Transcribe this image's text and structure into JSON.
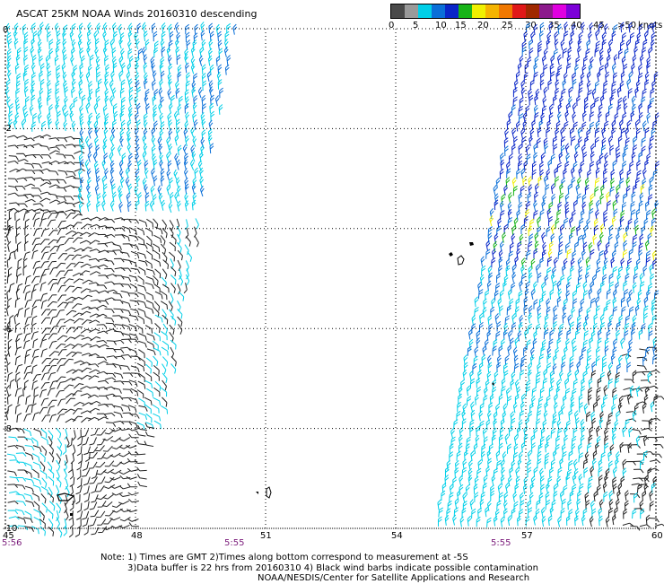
{
  "title": "ASCAT 25KM NOAA Winds 20160310 descending",
  "legend": {
    "units": "knots",
    "colors": [
      "#4a4a4a",
      "#9a9a9a",
      "#00cfe8",
      "#0a6fd8",
      "#0a26c8",
      "#18b418",
      "#f0f000",
      "#f5b400",
      "#f07800",
      "#e01818",
      "#a02800",
      "#8c1a8c",
      "#e000e0",
      "#7c00d8"
    ],
    "labels": [
      "0",
      "5",
      "10",
      "15",
      "20",
      "25",
      "30",
      "35",
      "40",
      "45",
      ">50"
    ]
  },
  "map": {
    "lat_ticks": [
      "0",
      "-2",
      "-4",
      "-6",
      "-8",
      "-10"
    ],
    "lon_ticks": [
      "45",
      "48",
      "51",
      "54",
      "57",
      "60"
    ],
    "times": [
      "5:56",
      "5:55",
      "5:55"
    ],
    "gridlines": true,
    "swath_left": {
      "lon_range": [
        45,
        50
      ],
      "colors": [
        "cyan",
        "blue",
        "black"
      ]
    },
    "swath_right": {
      "lon_range": [
        55,
        60
      ],
      "colors": [
        "blue",
        "cyan",
        "green",
        "yellow",
        "black"
      ]
    }
  },
  "notes": {
    "line1": "Note: 1) Times are GMT 2)Times along bottom correspond to measurement at -5S",
    "line2": "3)Data buffer is 22 hrs from 20160310 4) Black wind barbs indicate possible contamination",
    "line3": "NOAA/NESDIS/Center for Satellite Applications and Research"
  }
}
